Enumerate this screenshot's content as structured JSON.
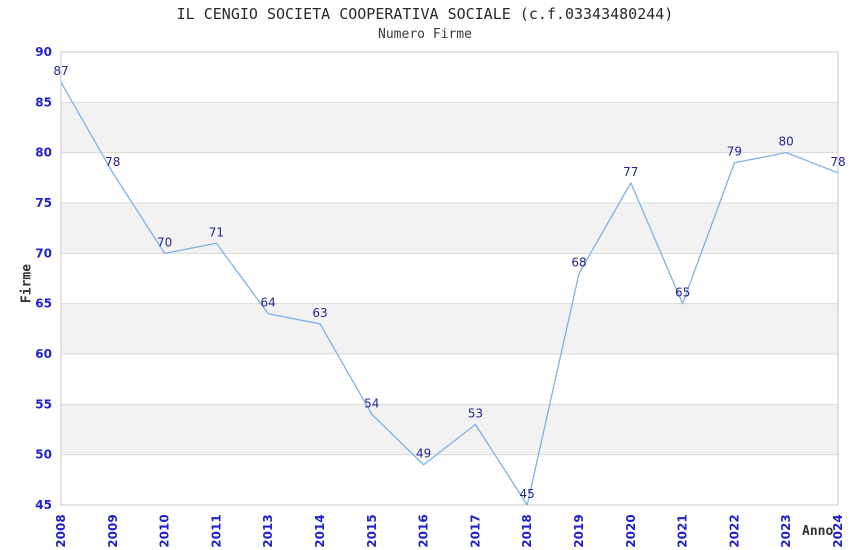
{
  "header": {
    "title": "IL CENGIO SOCIETA COOPERATIVA SOCIALE (c.f.03343480244)",
    "subtitle": "Numero Firme"
  },
  "chart_data": {
    "type": "line",
    "title": "IL CENGIO SOCIETA COOPERATIVA SOCIALE (c.f.03343480244)",
    "subtitle": "Numero Firme",
    "xlabel": "Anno",
    "ylabel": "Firme",
    "categories": [
      "2008",
      "2009",
      "2010",
      "2011",
      "2013",
      "2014",
      "2015",
      "2016",
      "2017",
      "2018",
      "2019",
      "2020",
      "2021",
      "2022",
      "2023",
      "2024"
    ],
    "series": [
      {
        "name": "Numero Firme",
        "values": [
          87,
          78,
          70,
          71,
          64,
          63,
          54,
          49,
          53,
          45,
          68,
          77,
          65,
          79,
          80,
          78
        ]
      }
    ],
    "ylim": [
      45,
      90
    ],
    "ytick_step": 5,
    "yticks": [
      45,
      50,
      55,
      60,
      65,
      70,
      75,
      80,
      85,
      90
    ],
    "grid": true,
    "legend_position": "none",
    "band_style": "alternating horizontal gray bands, white band at top (85-90)",
    "colors": {
      "line": "#7EB2E6",
      "tick_label": "#2222CC",
      "value_label": "#26268F",
      "band_fill": "#F2F2F2",
      "grid_line": "#DADADA",
      "plot_border": "#C9C9C9",
      "title_text": "#2A2A2A",
      "axis_title_text": "#333333"
    }
  }
}
